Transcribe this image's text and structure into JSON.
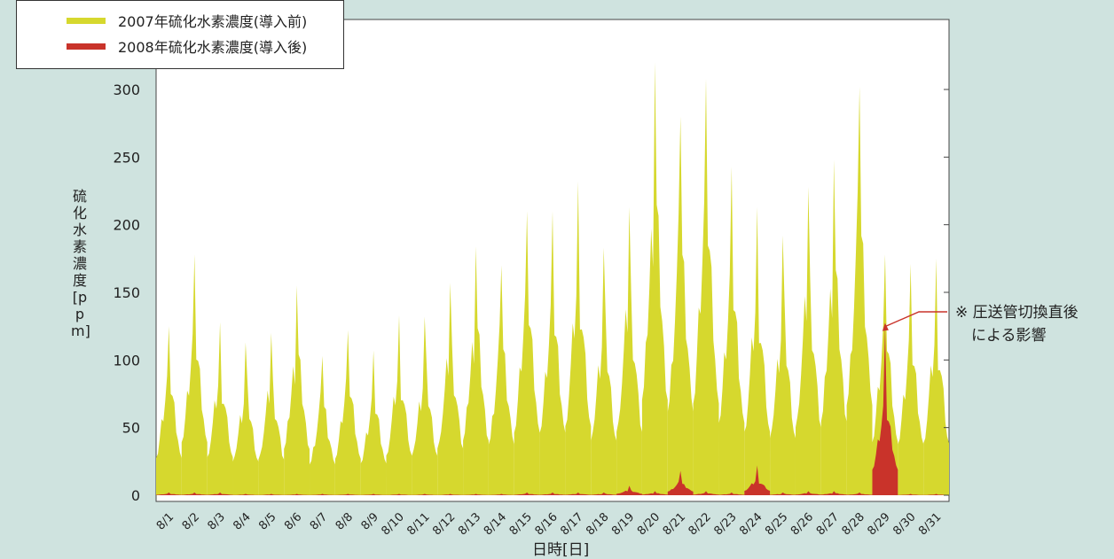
{
  "legend": {
    "entries": [
      {
        "label": "2007年硫化水素濃度(導入前)",
        "color": "#d6d82e"
      },
      {
        "label": "2008年硫化水素濃度(導入後)",
        "color": "#c9332a"
      }
    ]
  },
  "chart_data": {
    "type": "area",
    "xlabel": "日時[日]",
    "ylabel": "硫化水素濃度[ppm]",
    "ylim": [
      0,
      330
    ],
    "yticks": [
      0,
      50,
      100,
      150,
      200,
      250,
      300
    ],
    "categories": [
      "8/1",
      "8/2",
      "8/3",
      "8/4",
      "8/5",
      "8/6",
      "8/7",
      "8/8",
      "8/9",
      "8/10",
      "8/11",
      "8/12",
      "8/13",
      "8/14",
      "8/15",
      "8/16",
      "8/17",
      "8/18",
      "8/19",
      "8/20",
      "8/21",
      "8/22",
      "8/23",
      "8/24",
      "8/25",
      "8/26",
      "8/27",
      "8/28",
      "8/29",
      "8/30",
      "8/31"
    ],
    "grid": false,
    "legend_position": "top-left",
    "series": [
      {
        "name": "2007年硫化水素濃度(導入前)",
        "color": "#d6d82e",
        "values": [
          125,
          178,
          128,
          113,
          120,
          155,
          103,
          122,
          107,
          133,
          132,
          157,
          184,
          170,
          210,
          210,
          232,
          183,
          213,
          320,
          280,
          308,
          243,
          213,
          192,
          228,
          248,
          302,
          178,
          171,
          175
        ]
      },
      {
        "name": "2008年硫化水素濃度(導入後)",
        "color": "#c9332a",
        "values": [
          2,
          2,
          2,
          1,
          1,
          1,
          1,
          1,
          1,
          1,
          1,
          1,
          1,
          1,
          2,
          2,
          2,
          2,
          7,
          3,
          18,
          3,
          2,
          22,
          2,
          3,
          3,
          2,
          126,
          1,
          1
        ]
      }
    ],
    "annotation": {
      "lines": [
        "※ 圧送管切換直後",
        "による影響"
      ],
      "color": "#c9332a"
    }
  }
}
